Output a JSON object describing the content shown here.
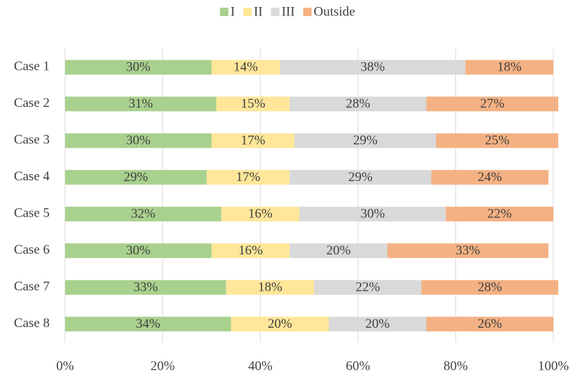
{
  "chart_data": {
    "type": "stacked_barh",
    "categories": [
      "Case 1",
      "Case 2",
      "Case 3",
      "Case 4",
      "Case 5",
      "Case 6",
      "Case 7",
      "Case 8"
    ],
    "series": [
      {
        "name": "I",
        "color": "#a9d18e",
        "values": [
          30,
          31,
          30,
          29,
          32,
          30,
          33,
          34
        ],
        "value_labels": [
          "30%",
          "31%",
          "30%",
          "29%",
          "32%",
          "30%",
          "33%",
          "34%"
        ]
      },
      {
        "name": "II",
        "color": "#ffe699",
        "values": [
          14,
          15,
          17,
          17,
          16,
          16,
          18,
          20
        ],
        "value_labels": [
          "14%",
          "15%",
          "17%",
          "17%",
          "16%",
          "16%",
          "18%",
          "20%"
        ]
      },
      {
        "name": "III",
        "color": "#d9d9d9",
        "values": [
          38,
          28,
          29,
          29,
          30,
          20,
          22,
          20
        ],
        "value_labels": [
          "38%",
          "28%",
          "29%",
          "29%",
          "30%",
          "20%",
          "22%",
          "20%"
        ]
      },
      {
        "name": "Outside",
        "color": "#f4b183",
        "values": [
          18,
          27,
          25,
          24,
          22,
          33,
          28,
          26
        ],
        "value_labels": [
          "18%",
          "27%",
          "25%",
          "24%",
          "22%",
          "33%",
          "28%",
          "26%"
        ]
      }
    ],
    "xlim": [
      0,
      100
    ],
    "xticks": [
      {
        "value": 0,
        "label": "0%"
      },
      {
        "value": 20,
        "label": "20%"
      },
      {
        "value": 40,
        "label": "40%"
      },
      {
        "value": 60,
        "label": "60%"
      },
      {
        "value": 80,
        "label": "80%"
      },
      {
        "value": 100,
        "label": "100%"
      }
    ],
    "grid": true,
    "legend": "top"
  }
}
